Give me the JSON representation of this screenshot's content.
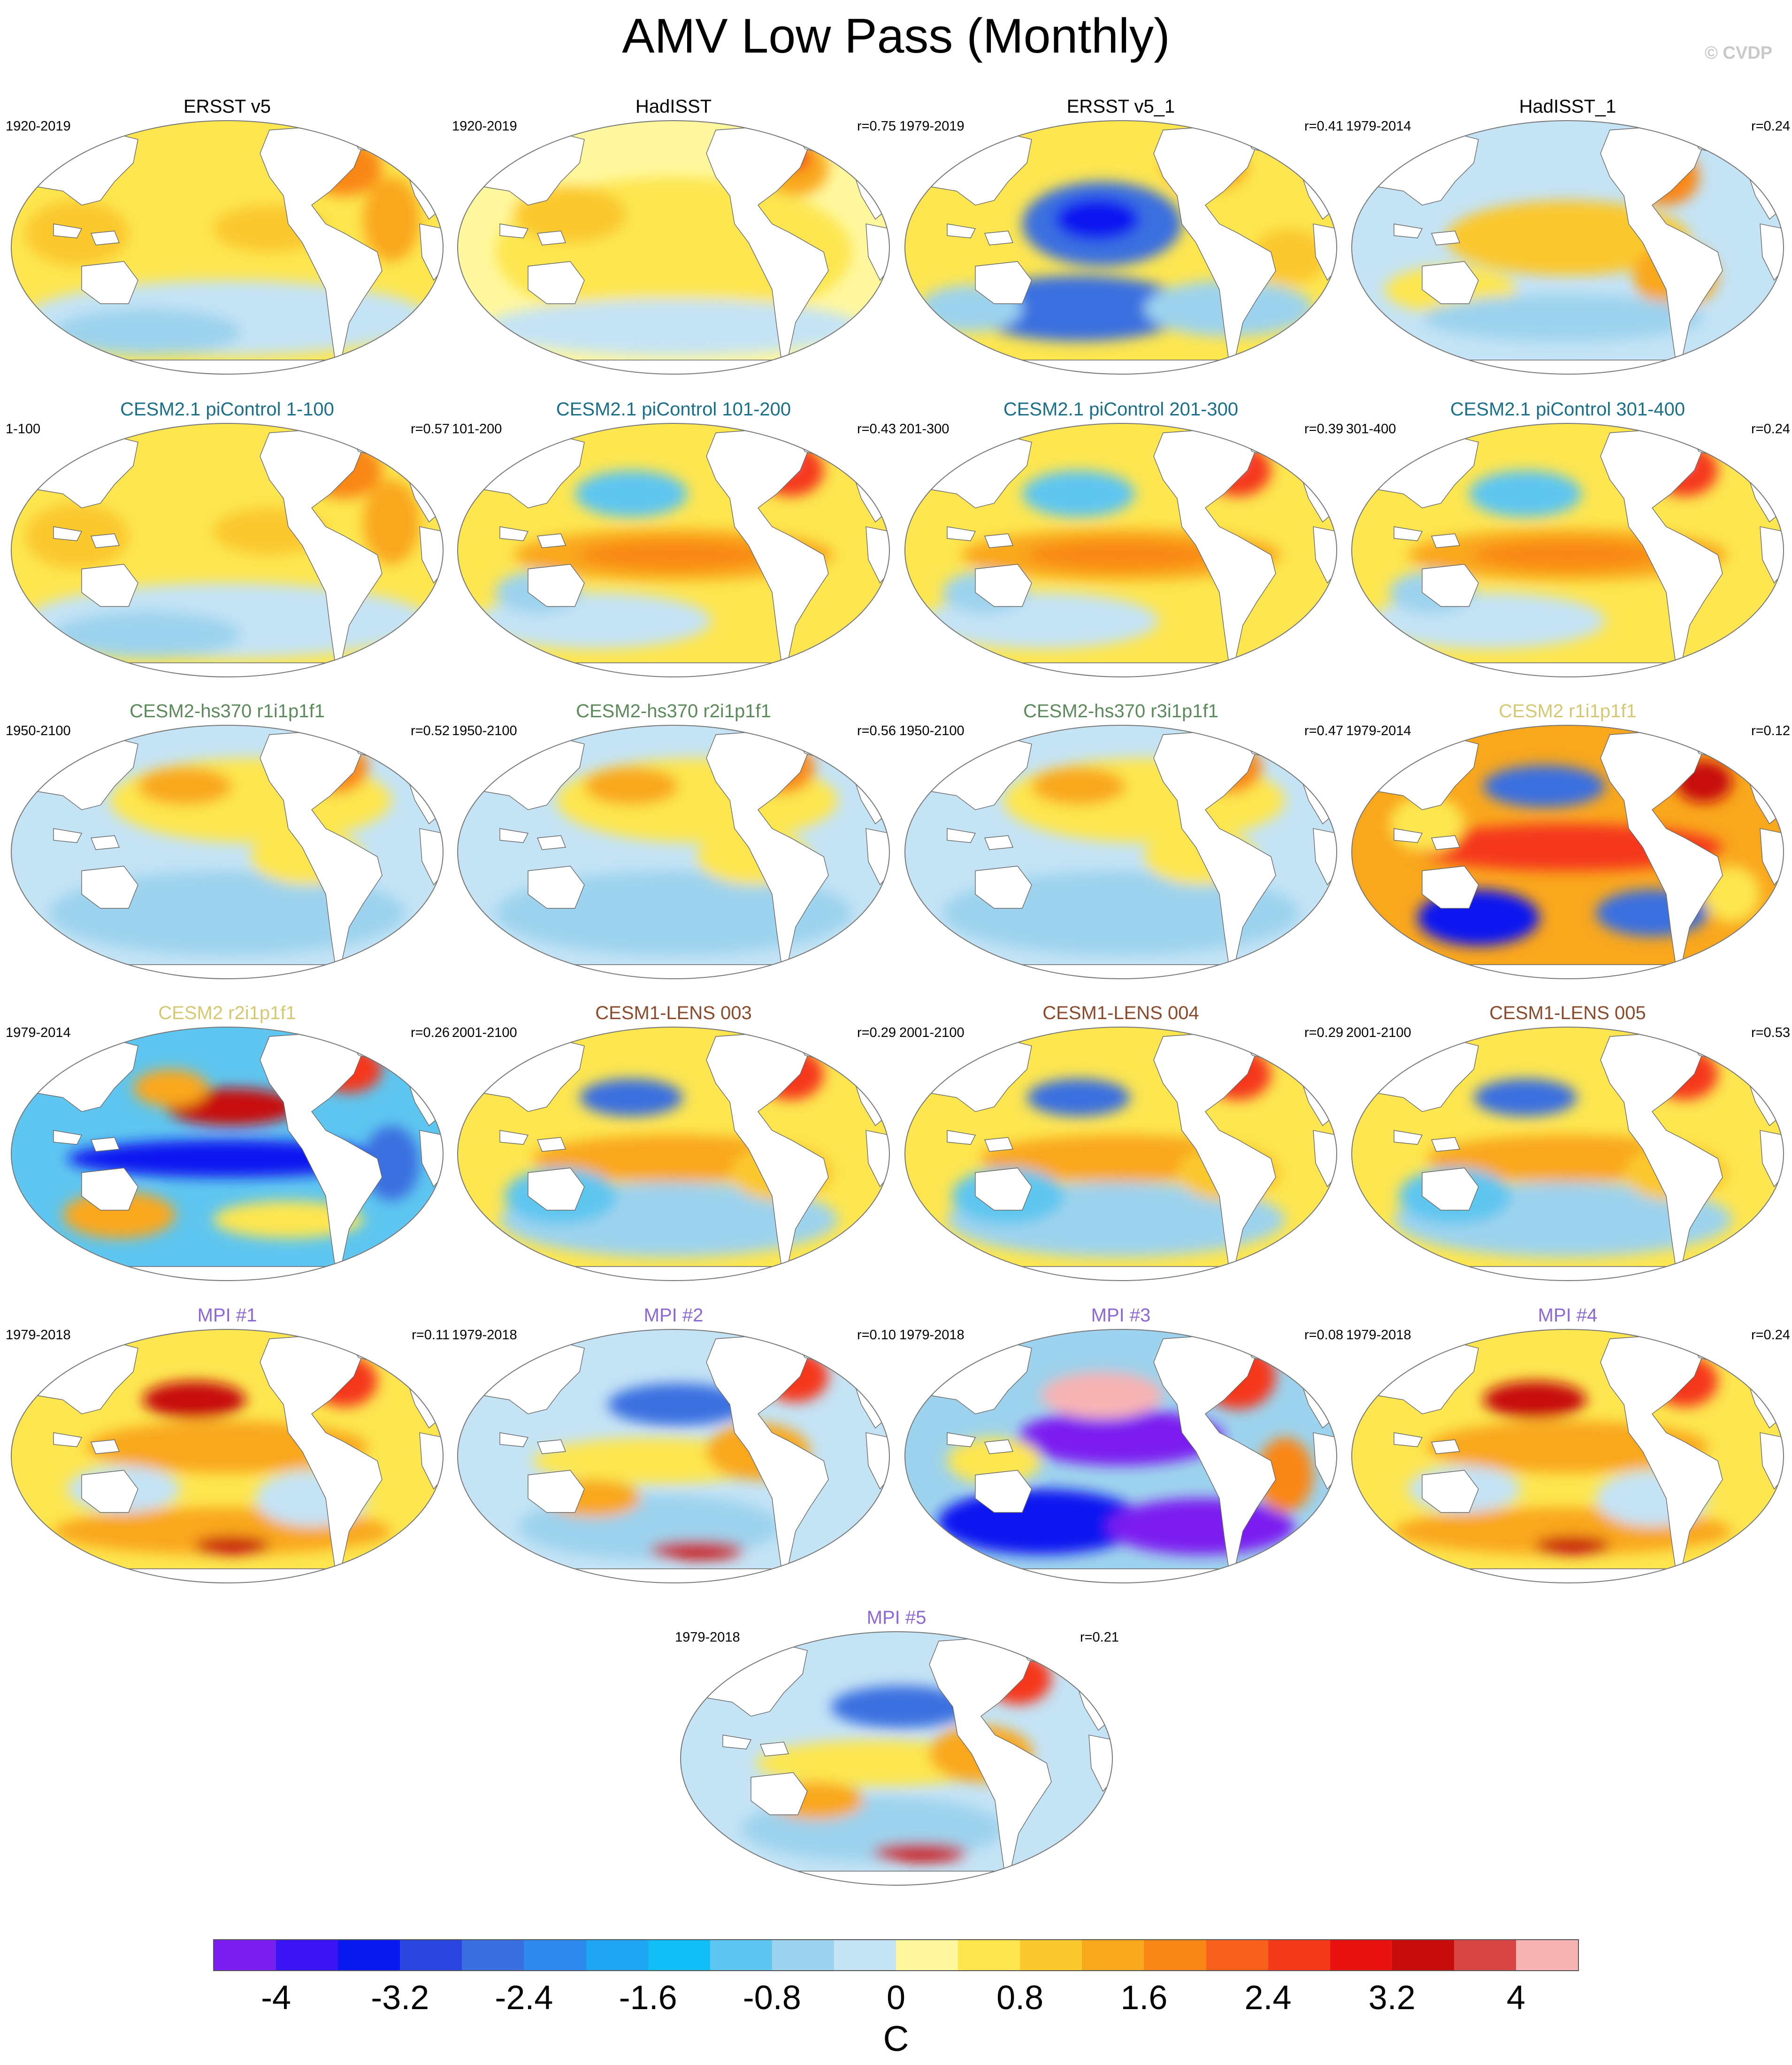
{
  "title": "AMV Low Pass (Monthly)",
  "copyright": "© CVDP",
  "panels": [
    {
      "title": "ERSST v5",
      "title_color": "#000000",
      "period": "1920-2019",
      "r": "",
      "pattern": "warmA"
    },
    {
      "title": "HadISST",
      "title_color": "#000000",
      "period": "1920-2019",
      "r": "r=0.75",
      "pattern": "warmB"
    },
    {
      "title": "ERSST v5_1",
      "title_color": "#000000",
      "period": "1979-2019",
      "r": "r=0.41",
      "pattern": "coldPac"
    },
    {
      "title": "HadISST_1",
      "title_color": "#000000",
      "period": "1979-2014",
      "r": "r=0.24",
      "pattern": "mixed"
    },
    {
      "title": "CESM2.1 piControl 1-100",
      "title_color": "#1a6f8a",
      "period": "1-100",
      "r": "r=0.57",
      "pattern": "warmA"
    },
    {
      "title": "CESM2.1 piControl 101-200",
      "title_color": "#1a6f8a",
      "period": "101-200",
      "r": "r=0.43",
      "pattern": "warmBand"
    },
    {
      "title": "CESM2.1 piControl 201-300",
      "title_color": "#1a6f8a",
      "period": "201-300",
      "r": "r=0.39",
      "pattern": "warmBand"
    },
    {
      "title": "CESM2.1 piControl 301-400",
      "title_color": "#1a6f8a",
      "period": "301-400",
      "r": "r=0.24",
      "pattern": "warmBand"
    },
    {
      "title": "CESM2-hs370 r1i1p1f1",
      "title_color": "#5b8a5b",
      "period": "1950-2100",
      "r": "r=0.52",
      "pattern": "coolSouth"
    },
    {
      "title": "CESM2-hs370 r2i1p1f1",
      "title_color": "#5b8a5b",
      "period": "1950-2100",
      "r": "r=0.56",
      "pattern": "coolSouth"
    },
    {
      "title": "CESM2-hs370 r3i1p1f1",
      "title_color": "#5b8a5b",
      "period": "1950-2100",
      "r": "r=0.47",
      "pattern": "coolSouth"
    },
    {
      "title": "CESM2 r1i1p1f1",
      "title_color": "#d6c873",
      "period": "1979-2014",
      "r": "r=0.12",
      "pattern": "strongWarm"
    },
    {
      "title": "CESM2 r2i1p1f1",
      "title_color": "#d6c873",
      "period": "1979-2014",
      "r": "r=0.26",
      "pattern": "strongCold"
    },
    {
      "title": "CESM1-LENS 003",
      "title_color": "#8b4a2b",
      "period": "2001-2100",
      "r": "r=0.29",
      "pattern": "lens"
    },
    {
      "title": "CESM1-LENS 004",
      "title_color": "#8b4a2b",
      "period": "2001-2100",
      "r": "r=0.29",
      "pattern": "lens"
    },
    {
      "title": "CESM1-LENS 005",
      "title_color": "#8b4a2b",
      "period": "2001-2100",
      "r": "r=0.53",
      "pattern": "lens"
    },
    {
      "title": "MPI #1",
      "title_color": "#8e67d6",
      "period": "1979-2018",
      "r": "r=0.11",
      "pattern": "mpiWarm"
    },
    {
      "title": "MPI #2",
      "title_color": "#8e67d6",
      "period": "1979-2018",
      "r": "r=0.10",
      "pattern": "mpiMixed"
    },
    {
      "title": "MPI #3",
      "title_color": "#8e67d6",
      "period": "1979-2018",
      "r": "r=0.08",
      "pattern": "mpiCold"
    },
    {
      "title": "MPI #4",
      "title_color": "#8e67d6",
      "period": "1979-2018",
      "r": "r=0.24",
      "pattern": "mpiWarm"
    },
    {
      "title": "MPI #5",
      "title_color": "#8e67d6",
      "period": "1979-2018",
      "r": "r=0.21",
      "pattern": "mpiMixed"
    }
  ],
  "colorbar": {
    "colors": [
      "#7b1ff0",
      "#3a14f5",
      "#0a18f0",
      "#2a45e0",
      "#3a6fe0",
      "#2f88ee",
      "#20a5f5",
      "#10bdf5",
      "#5ec6f0",
      "#9dd3ee",
      "#c4e3f5",
      "#fff79e",
      "#fde650",
      "#fbc82f",
      "#f9a71c",
      "#f98717",
      "#f7601b",
      "#f5391b",
      "#e81311",
      "#c70c0c",
      "#d84545",
      "#f8b4b4"
    ],
    "labels": [
      "-4",
      "-3.2",
      "-2.4",
      "-1.6",
      "-0.8",
      "0",
      "0.8",
      "1.6",
      "2.4",
      "3.2",
      "4"
    ],
    "units": "C"
  }
}
